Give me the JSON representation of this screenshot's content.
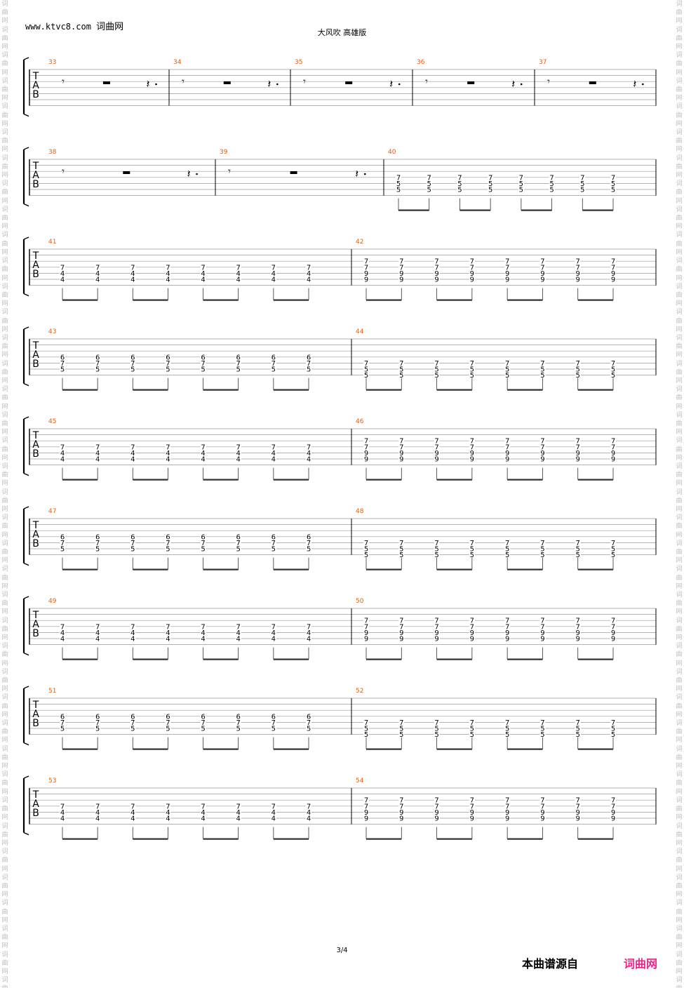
{
  "header": {
    "site_url": "www.ktvc8.com",
    "site_name": "词曲网",
    "song_title": "大风吹 高雄版"
  },
  "watermark": {
    "chars": [
      "词",
      "曲",
      "网"
    ]
  },
  "tab_clef": [
    "T",
    "A",
    "B"
  ],
  "rest_glyph": {
    "eighth": "𝄾",
    "half": "▬",
    "quarter": "𝄽"
  },
  "systems": [
    {
      "measures": [
        {
          "number": "33",
          "type": "rest"
        },
        {
          "number": "34",
          "type": "rest"
        },
        {
          "number": "35",
          "type": "rest"
        },
        {
          "number": "36",
          "type": "rest"
        },
        {
          "number": "37",
          "type": "rest"
        }
      ]
    },
    {
      "measures": [
        {
          "number": "38",
          "type": "rest"
        },
        {
          "number": "39",
          "type": "rest"
        },
        {
          "number": "40",
          "type": "chords",
          "chord": [
            {
              "s": 4,
              "f": "7"
            },
            {
              "s": 5,
              "f": "5"
            },
            {
              "s": 6,
              "f": "5"
            }
          ]
        }
      ]
    },
    {
      "measures": [
        {
          "number": "41",
          "type": "chords",
          "chord": [
            {
              "s": 4,
              "f": "7"
            },
            {
              "s": 5,
              "f": "4"
            },
            {
              "s": 6,
              "f": "4"
            }
          ]
        },
        {
          "number": "42",
          "type": "chords",
          "chord": [
            {
              "s": 3,
              "f": "7"
            },
            {
              "s": 4,
              "f": "7"
            },
            {
              "s": 5,
              "f": "9"
            },
            {
              "s": 6,
              "f": "9"
            }
          ]
        }
      ]
    },
    {
      "measures": [
        {
          "number": "43",
          "type": "chords",
          "chord": [
            {
              "s": 4,
              "f": "6"
            },
            {
              "s": 5,
              "f": "7"
            },
            {
              "s": 6,
              "f": "5"
            }
          ]
        },
        {
          "number": "44",
          "type": "chords",
          "chord": [
            {
              "s": 5,
              "f": "7"
            },
            {
              "s": 6,
              "f": "5"
            },
            {
              "s": 7,
              "f": "5"
            }
          ]
        }
      ]
    },
    {
      "measures": [
        {
          "number": "45",
          "type": "chords",
          "chord": [
            {
              "s": 4,
              "f": "7"
            },
            {
              "s": 5,
              "f": "4"
            },
            {
              "s": 6,
              "f": "4"
            }
          ]
        },
        {
          "number": "46",
          "type": "chords",
          "chord": [
            {
              "s": 3,
              "f": "7"
            },
            {
              "s": 4,
              "f": "7"
            },
            {
              "s": 5,
              "f": "9"
            },
            {
              "s": 6,
              "f": "9"
            }
          ]
        }
      ]
    },
    {
      "measures": [
        {
          "number": "47",
          "type": "chords",
          "chord": [
            {
              "s": 4,
              "f": "6"
            },
            {
              "s": 5,
              "f": "7"
            },
            {
              "s": 6,
              "f": "5"
            }
          ]
        },
        {
          "number": "48",
          "type": "chords",
          "chord": [
            {
              "s": 5,
              "f": "7"
            },
            {
              "s": 6,
              "f": "5"
            },
            {
              "s": 7,
              "f": "5"
            }
          ]
        }
      ]
    },
    {
      "measures": [
        {
          "number": "49",
          "type": "chords",
          "chord": [
            {
              "s": 4,
              "f": "7"
            },
            {
              "s": 5,
              "f": "4"
            },
            {
              "s": 6,
              "f": "4"
            }
          ]
        },
        {
          "number": "50",
          "type": "chords",
          "chord": [
            {
              "s": 3,
              "f": "7"
            },
            {
              "s": 4,
              "f": "7"
            },
            {
              "s": 5,
              "f": "9"
            },
            {
              "s": 6,
              "f": "9"
            }
          ]
        }
      ]
    },
    {
      "measures": [
        {
          "number": "51",
          "type": "chords",
          "chord": [
            {
              "s": 4,
              "f": "6"
            },
            {
              "s": 5,
              "f": "7"
            },
            {
              "s": 6,
              "f": "5"
            }
          ]
        },
        {
          "number": "52",
          "type": "chords",
          "chord": [
            {
              "s": 5,
              "f": "7"
            },
            {
              "s": 6,
              "f": "5"
            },
            {
              "s": 7,
              "f": "5"
            }
          ]
        }
      ]
    },
    {
      "measures": [
        {
          "number": "53",
          "type": "chords",
          "chord": [
            {
              "s": 4,
              "f": "7"
            },
            {
              "s": 5,
              "f": "4"
            },
            {
              "s": 6,
              "f": "4"
            }
          ]
        },
        {
          "number": "54",
          "type": "chords",
          "chord": [
            {
              "s": 3,
              "f": "7"
            },
            {
              "s": 4,
              "f": "7"
            },
            {
              "s": 5,
              "f": "9"
            },
            {
              "s": 6,
              "f": "9"
            }
          ]
        }
      ]
    }
  ],
  "footer": {
    "page_number": "3/4",
    "source_label": "本曲谱源自",
    "source_brand": "词曲网"
  }
}
